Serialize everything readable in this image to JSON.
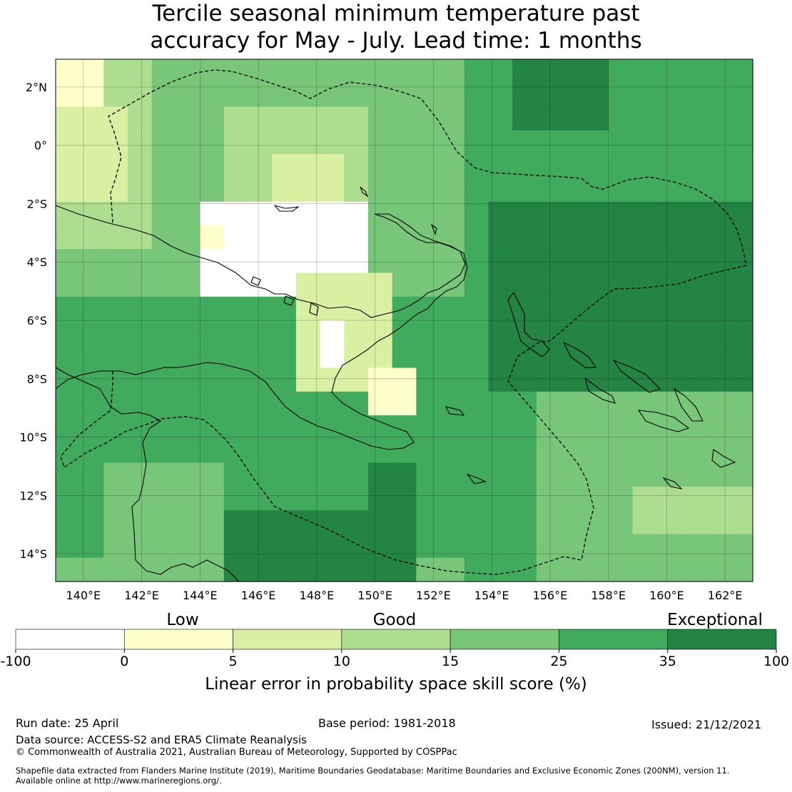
{
  "title": {
    "line1": "Tercile seasonal minimum temperature past",
    "line2": "accuracy for May - July. Lead time: 1 months"
  },
  "map": {
    "lat_labels": [
      "2°N",
      "0°",
      "2°S",
      "4°S",
      "6°S",
      "8°S",
      "10°S",
      "12°S",
      "14°S"
    ],
    "lon_labels": [
      "140°E",
      "142°E",
      "144°E",
      "146°E",
      "148°E",
      "150°E",
      "152°E",
      "154°E",
      "156°E",
      "158°E",
      "160°E",
      "162°E"
    ]
  },
  "legend": {
    "categories": [
      "Low",
      "Good",
      "Exceptional"
    ],
    "ticks": [
      "-100",
      "0",
      "5",
      "10",
      "15",
      "25",
      "35",
      "100"
    ],
    "colors": [
      "#ffffff",
      "#ffffcc",
      "#d9f0a3",
      "#addd8e",
      "#78c679",
      "#41ab5d",
      "#238443"
    ],
    "label": "Linear error in probability space skill score (%)"
  },
  "footer": {
    "run_date": "Run date: 25 April",
    "base_period": "Base period: 1981-2018",
    "issued": "Issued: 21/12/2021",
    "data_source": "Data source: ACCESS-S2 and ERA5 Climate Reanalysis",
    "copyright": "© Commonwealth of Australia 2021, Australian Bureau of Meteorology, Supported by COSPPac",
    "shapefile_line1": "Shapefile data extracted from Flanders Marine Institute (2019), Maritime Boundaries Geodatabase: Maritime Boundaries and Exclusive Economic Zones (200NM), version 11.",
    "shapefile_line2": "Available online at http://www.marineregions.org/."
  }
}
